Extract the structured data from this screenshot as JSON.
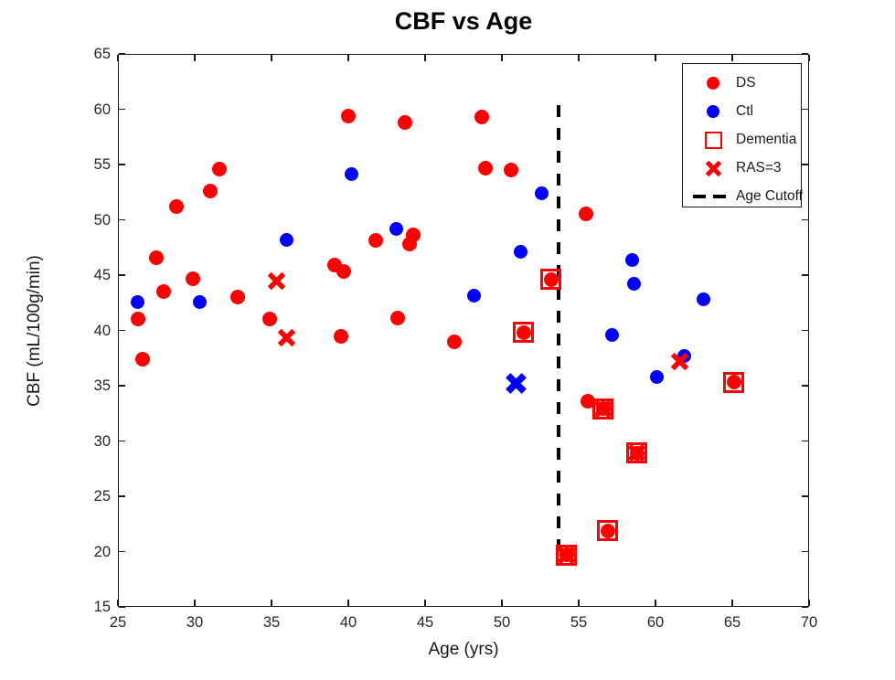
{
  "chart_data": {
    "type": "scatter",
    "title": "CBF vs Age",
    "xlabel": "Age (yrs)",
    "ylabel": "CBF (mL/100g/min)",
    "xlim": [
      25,
      70
    ],
    "ylim": [
      15,
      65
    ],
    "xticks": [
      25,
      30,
      35,
      40,
      45,
      50,
      55,
      60,
      65,
      70
    ],
    "yticks": [
      15,
      20,
      25,
      30,
      35,
      40,
      45,
      50,
      55,
      60,
      65
    ],
    "grid": false,
    "colors": {
      "DS": "#ff0000",
      "Ctl": "#0000ff",
      "cutoff": "#000000"
    },
    "age_cutoff": {
      "age": 53.7,
      "cbf_range": [
        19.6,
        60.4
      ]
    },
    "legend_position": "top-right",
    "legend_items": [
      {
        "label": "DS",
        "icon": "red-dot"
      },
      {
        "label": "Ctl",
        "icon": "blue-dot"
      },
      {
        "label": "Dementia",
        "icon": "red-open-square"
      },
      {
        "label": "RAS=3",
        "icon": "red-x"
      },
      {
        "label": "Age Cutoff",
        "icon": "black-dashed-line"
      }
    ],
    "points": [
      {
        "age": 26.3,
        "cbf": 41.0,
        "group": "DS"
      },
      {
        "age": 26.6,
        "cbf": 37.4,
        "group": "DS"
      },
      {
        "age": 27.5,
        "cbf": 46.6,
        "group": "DS"
      },
      {
        "age": 28.0,
        "cbf": 43.5,
        "group": "DS"
      },
      {
        "age": 28.8,
        "cbf": 51.2,
        "group": "DS"
      },
      {
        "age": 29.9,
        "cbf": 44.7,
        "group": "DS"
      },
      {
        "age": 31.0,
        "cbf": 52.6,
        "group": "DS"
      },
      {
        "age": 31.6,
        "cbf": 54.6,
        "group": "DS"
      },
      {
        "age": 32.8,
        "cbf": 43.0,
        "group": "DS"
      },
      {
        "age": 34.9,
        "cbf": 41.0,
        "group": "DS"
      },
      {
        "age": 39.1,
        "cbf": 45.9,
        "group": "DS"
      },
      {
        "age": 39.7,
        "cbf": 45.3,
        "group": "DS"
      },
      {
        "age": 39.5,
        "cbf": 39.5,
        "group": "DS"
      },
      {
        "age": 40.0,
        "cbf": 59.4,
        "group": "DS"
      },
      {
        "age": 41.8,
        "cbf": 48.1,
        "group": "DS"
      },
      {
        "age": 43.2,
        "cbf": 41.1,
        "group": "DS"
      },
      {
        "age": 43.7,
        "cbf": 58.8,
        "group": "DS"
      },
      {
        "age": 44.2,
        "cbf": 48.6,
        "group": "DS"
      },
      {
        "age": 44.0,
        "cbf": 47.8,
        "group": "DS"
      },
      {
        "age": 46.9,
        "cbf": 39.0,
        "group": "DS"
      },
      {
        "age": 48.7,
        "cbf": 59.3,
        "group": "DS"
      },
      {
        "age": 48.9,
        "cbf": 54.7,
        "group": "DS"
      },
      {
        "age": 50.6,
        "cbf": 54.5,
        "group": "DS"
      },
      {
        "age": 55.5,
        "cbf": 50.5,
        "group": "DS"
      },
      {
        "age": 55.6,
        "cbf": 33.6,
        "group": "DS"
      },
      {
        "age": 35.3,
        "cbf": 44.5,
        "group": "DS",
        "marker": "x"
      },
      {
        "age": 36.0,
        "cbf": 39.3,
        "group": "DS",
        "marker": "x"
      },
      {
        "age": 51.4,
        "cbf": 39.8,
        "group": "DS",
        "dementia": true
      },
      {
        "age": 53.2,
        "cbf": 44.6,
        "group": "DS",
        "dementia": true
      },
      {
        "age": 56.9,
        "cbf": 21.9,
        "group": "DS",
        "dementia": true
      },
      {
        "age": 65.1,
        "cbf": 35.3,
        "group": "DS",
        "dementia": true
      },
      {
        "age": 54.2,
        "cbf": 19.7,
        "group": "DS",
        "dementia": true,
        "ras3": true
      },
      {
        "age": 56.6,
        "cbf": 32.9,
        "group": "DS",
        "dementia": true,
        "ras3": true
      },
      {
        "age": 58.8,
        "cbf": 28.9,
        "group": "DS",
        "dementia": true,
        "ras3": true
      },
      {
        "age": 26.3,
        "cbf": 42.6,
        "group": "Ctl"
      },
      {
        "age": 30.3,
        "cbf": 42.6,
        "group": "Ctl"
      },
      {
        "age": 36.0,
        "cbf": 48.2,
        "group": "Ctl"
      },
      {
        "age": 40.2,
        "cbf": 54.1,
        "group": "Ctl"
      },
      {
        "age": 43.1,
        "cbf": 49.2,
        "group": "Ctl"
      },
      {
        "age": 48.2,
        "cbf": 43.1,
        "group": "Ctl"
      },
      {
        "age": 51.2,
        "cbf": 47.1,
        "group": "Ctl"
      },
      {
        "age": 52.6,
        "cbf": 52.4,
        "group": "Ctl"
      },
      {
        "age": 57.2,
        "cbf": 39.6,
        "group": "Ctl"
      },
      {
        "age": 58.5,
        "cbf": 46.4,
        "group": "Ctl"
      },
      {
        "age": 58.6,
        "cbf": 44.2,
        "group": "Ctl"
      },
      {
        "age": 60.1,
        "cbf": 35.8,
        "group": "Ctl"
      },
      {
        "age": 61.9,
        "cbf": 37.7,
        "group": "Ctl"
      },
      {
        "age": 63.1,
        "cbf": 42.8,
        "group": "Ctl"
      },
      {
        "age": 50.9,
        "cbf": 35.2,
        "group": "Ctl",
        "marker": "x"
      },
      {
        "age": 61.6,
        "cbf": 37.2,
        "group": "DS",
        "marker": "x"
      }
    ]
  }
}
